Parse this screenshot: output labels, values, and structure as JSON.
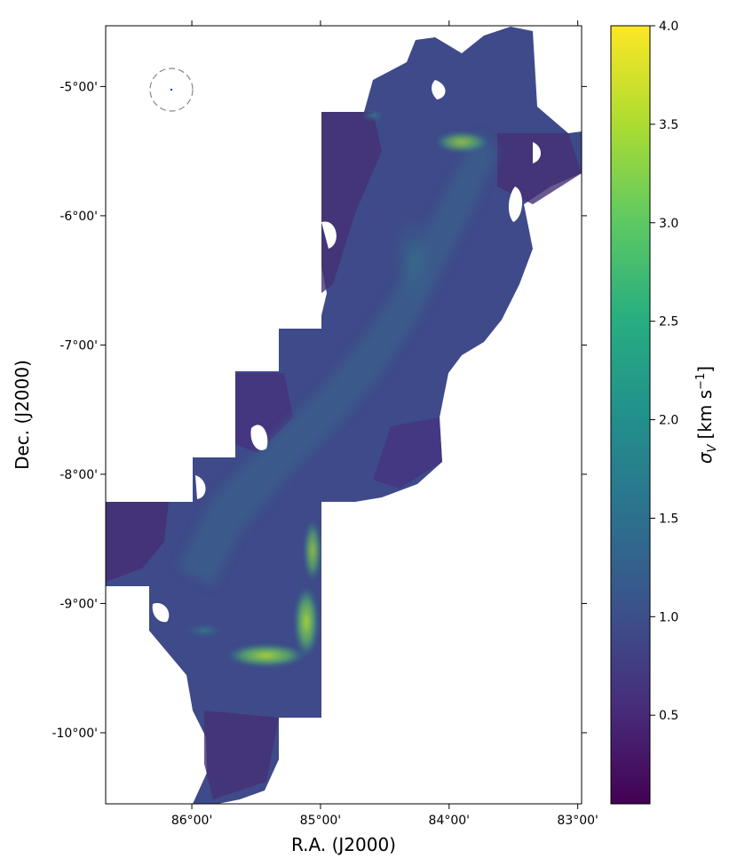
{
  "chart_data": {
    "type": "heatmap",
    "xlabel": "R.A. (J2000)",
    "ylabel": "Dec. (J2000)",
    "x_tick_labels": [
      "86°00'",
      "85°00'",
      "84°00'",
      "83°00'"
    ],
    "x_ticks_deg": [
      86.0,
      85.0,
      84.0,
      83.0
    ],
    "xlim_deg": [
      86.67,
      82.97
    ],
    "y_tick_labels": [
      "-5°00'",
      "-6°00'",
      "-7°00'",
      "-8°00'",
      "-9°00'",
      "-10°00'"
    ],
    "y_ticks_deg": [
      -5.0,
      -6.0,
      -7.0,
      -8.0,
      -9.0,
      -10.0
    ],
    "ylim_deg": [
      -10.55,
      -4.53
    ],
    "colorbar": {
      "label_symbol": "σ",
      "label_subscript": "V",
      "label_unit": "[km s",
      "label_exponent": "−1",
      "label_close": "]",
      "range": [
        0.05,
        4.0
      ],
      "tick_values": [
        0.5,
        1.0,
        1.5,
        2.0,
        2.5,
        3.0,
        3.5,
        4.0
      ],
      "tick_labels": [
        "0.5",
        "1.0",
        "1.5",
        "2.0",
        "2.5",
        "3.0",
        "3.5",
        "4.0"
      ],
      "colormap": "viridis",
      "colors": [
        "#440154",
        "#472d7b",
        "#3b528b",
        "#2c728e",
        "#21918c",
        "#28ae80",
        "#5ec962",
        "#addc30",
        "#fde725"
      ]
    },
    "map_description": "Velocity dispersion map of an elongated cloud running from lower-left to upper-right; mostly 0.5–1.5 km/s with high-dispersion ridges (2.5–3.5 km/s) near R.A. 85°00' Dec. -9°10' and R.A. 84°00' Dec. -5°30'",
    "beam_marker": "dashed circle in upper-left corner"
  }
}
